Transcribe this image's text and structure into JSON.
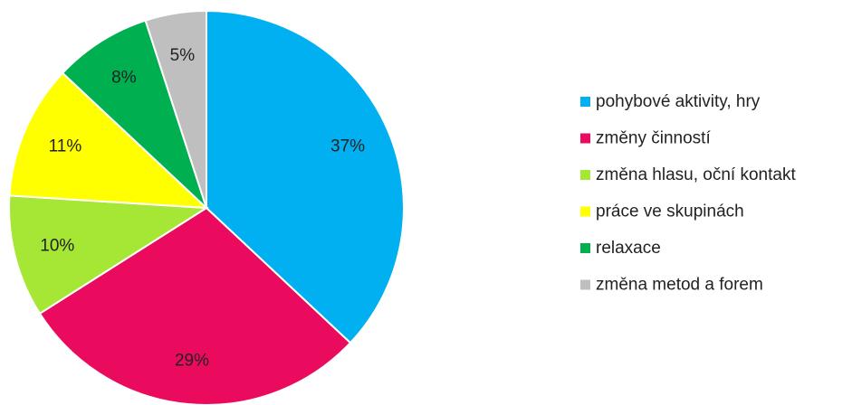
{
  "chart_data": {
    "type": "pie",
    "categories": [
      "pohybové aktivity, hry",
      "změny činností",
      "změna hlasu, oční kontakt",
      "práce ve skupinách",
      "relaxace",
      "změna metod a forem"
    ],
    "values": [
      37,
      29,
      10,
      11,
      8,
      5
    ],
    "value_labels": [
      "37%",
      "29%",
      "10%",
      "11%",
      "8%",
      "5%"
    ],
    "colors": [
      "#00b0f0",
      "#ea0a5e",
      "#a6e634",
      "#ffff00",
      "#00b050",
      "#bfbfbf"
    ],
    "legend": "right"
  }
}
